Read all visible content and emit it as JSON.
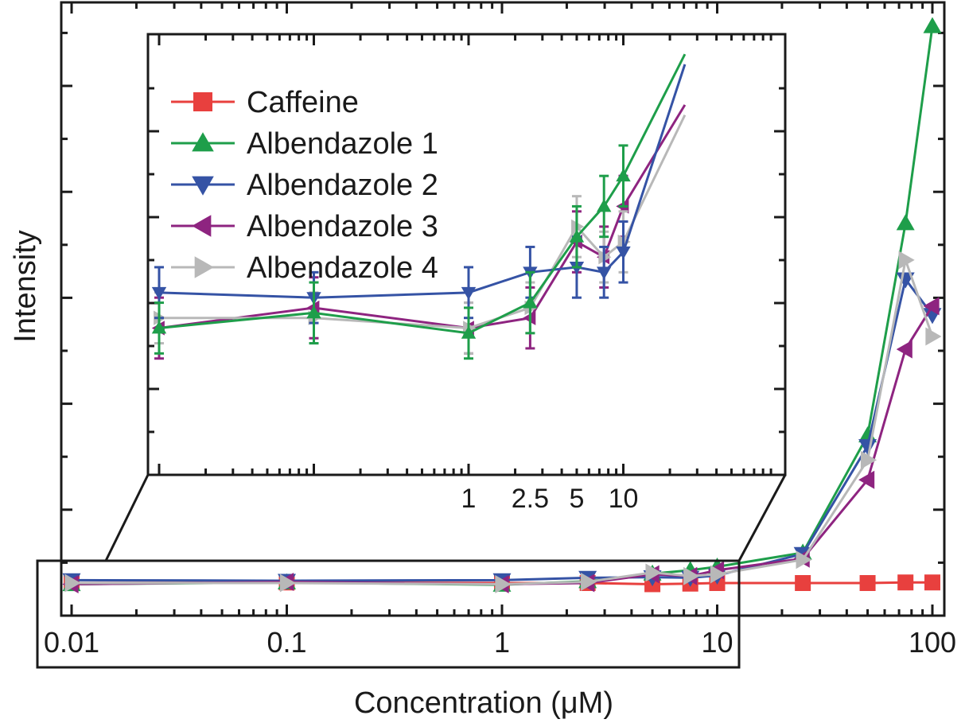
{
  "chart_data": {
    "type": "line",
    "xlabel": "Concentration (μM)",
    "ylabel": "Intensity",
    "xscale": "log",
    "xlim": [
      0.01,
      100
    ],
    "ylim": [
      0,
      1
    ],
    "xticks": [
      {
        "value": 0.01,
        "label": "0.01"
      },
      {
        "value": 0.1,
        "label": "0.1"
      },
      {
        "value": 1,
        "label": "1"
      },
      {
        "value": 10,
        "label": "10"
      },
      {
        "value": 100,
        "label": "100"
      }
    ],
    "legend_position": "inside inset, top-left",
    "series": [
      {
        "name": "Caffeine",
        "color": "#e8403e",
        "marker": "square",
        "x": [
          0.01,
          0.1,
          1,
          2.5,
          5,
          7.5,
          10,
          25,
          50,
          75,
          100
        ],
        "y": [
          0.03,
          0.031,
          0.03,
          0.03,
          0.028,
          0.029,
          0.03,
          0.03,
          0.03,
          0.031,
          0.031
        ],
        "err": [
          0,
          0,
          0,
          0,
          0,
          0,
          0,
          0,
          0,
          0,
          0
        ]
      },
      {
        "name": "Albendazole 1",
        "color": "#1e9e4a",
        "marker": "triangle-up",
        "x": [
          0.01,
          0.1,
          1,
          2.5,
          5,
          7.5,
          10,
          25,
          50,
          75,
          100
        ],
        "y": [
          0.028,
          0.031,
          0.027,
          0.033,
          0.046,
          0.052,
          0.058,
          0.082,
          0.283,
          0.647,
          0.985
        ],
        "err": [
          0.005,
          0.006,
          0.005,
          0.006,
          0.006,
          0.006,
          0.006,
          0.01,
          0.015,
          0.02,
          0.03
        ]
      },
      {
        "name": "Albendazole 2",
        "color": "#3553a5",
        "marker": "triangle-down",
        "x": [
          0.01,
          0.1,
          1,
          2.5,
          5,
          7.5,
          10,
          25,
          50,
          75,
          100
        ],
        "y": [
          0.035,
          0.034,
          0.035,
          0.039,
          0.04,
          0.039,
          0.043,
          0.08,
          0.265,
          0.551,
          0.49
        ],
        "err": [
          0.005,
          0.005,
          0.005,
          0.005,
          0.006,
          0.005,
          0.006,
          0.008,
          0.012,
          0.015,
          0.015
        ]
      },
      {
        "name": "Albendazole 3",
        "color": "#8e2480",
        "marker": "triangle-left",
        "x": [
          0.01,
          0.1,
          1,
          2.5,
          5,
          7.5,
          10,
          25,
          50,
          75,
          100
        ],
        "y": [
          0.028,
          0.032,
          0.028,
          0.03,
          0.045,
          0.042,
          0.052,
          0.072,
          0.207,
          0.431,
          0.505
        ],
        "err": [
          0.006,
          0.006,
          0.005,
          0.006,
          0.006,
          0.006,
          0.006,
          0.009,
          0.012,
          0.015,
          0.015
        ]
      },
      {
        "name": "Albendazole 4",
        "color": "#b8b8b8",
        "marker": "triangle-right",
        "x": [
          0.01,
          0.1,
          1,
          2.5,
          5,
          7.5,
          10,
          25,
          50,
          75,
          100
        ],
        "y": [
          0.03,
          0.03,
          0.028,
          0.032,
          0.048,
          0.042,
          0.045,
          0.07,
          0.241,
          0.584,
          0.453
        ],
        "err": [
          0.005,
          0.005,
          0.005,
          0.005,
          0.006,
          0.005,
          0.006,
          0.008,
          0.012,
          0.015,
          0.015
        ]
      }
    ],
    "inset": {
      "xscale": "log",
      "xlim": [
        0.01,
        100
      ],
      "ylim": [
        0,
        0.085
      ],
      "xticks": [
        {
          "value": 1,
          "label": "1"
        },
        {
          "value": 2.5,
          "label": "2.5"
        },
        {
          "value": 5,
          "label": "5"
        },
        {
          "value": 10,
          "label": "10"
        }
      ],
      "magnified_region": "0.01 to 10 μM"
    }
  }
}
